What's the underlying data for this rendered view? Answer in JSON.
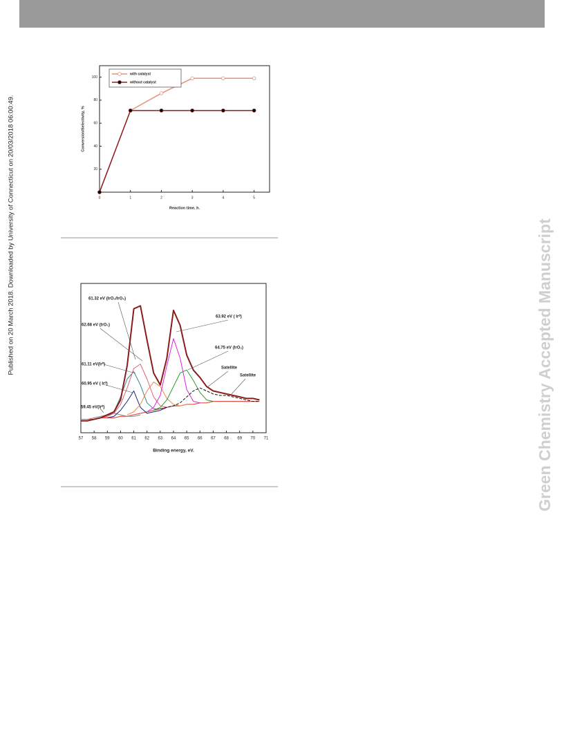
{
  "side_note": "Published on 20 March 2018. Downloaded by University of Connecticut on 20/03/2018 06:00:49.",
  "watermark": "Green Chemistry Accepted Manuscript",
  "chart_data": [
    {
      "type": "line",
      "xlabel": "Reaction time, h.",
      "ylabel": "Conversion/Selectivity, %",
      "x": [
        0,
        1,
        2,
        3,
        4,
        5
      ],
      "xlim": [
        0,
        5.5
      ],
      "xticks": [
        0,
        1,
        2,
        3,
        4,
        5
      ],
      "ylim": [
        0,
        110
      ],
      "yticks": [
        20,
        40,
        60,
        80,
        100
      ],
      "legend": "upper left",
      "series": [
        {
          "name": "with catalyst",
          "color": "#e8907a",
          "marker_color": "#ffffff",
          "linewidth": 1.5,
          "values": [
            0,
            71,
            86,
            99,
            99,
            99
          ]
        },
        {
          "name": "without catalyst",
          "color": "#8b2020",
          "marker_color": "#000000",
          "linewidth": 1.5,
          "values": [
            0,
            71,
            71,
            71,
            71,
            71
          ]
        }
      ]
    },
    {
      "type": "line",
      "xlabel": "Binding energy, eV.",
      "x": [
        57,
        57.5,
        58,
        58.5,
        59,
        59.5,
        60,
        60.5,
        61,
        61.5,
        62,
        62.5,
        63,
        63.5,
        64,
        64.5,
        65,
        65.5,
        66,
        66.5,
        67,
        67.5,
        68,
        68.5,
        69,
        69.5,
        70,
        70.5
      ],
      "xlim": [
        57,
        71
      ],
      "xticks": [
        57,
        58,
        59,
        60,
        61,
        62,
        63,
        64,
        65,
        66,
        67,
        68,
        69,
        70,
        71
      ],
      "ylim": [
        0,
        100
      ],
      "annotations": [
        "61.32 eV (IrO₂/IrO₃)",
        "62.68 eV (IrO₂)",
        "63.92 eV ( Ir⁰)",
        "64.75 eV (IrO₂)",
        "61.11 eV(Ir⁰)",
        "60.95 eV ( Ir⁰)",
        "59.45 eV(Ir⁰)",
        "Satellite",
        "Satellite"
      ],
      "series": [
        {
          "color": "#e05040",
          "linewidth": 1.2,
          "values": [
            9,
            9,
            9,
            10,
            10,
            10,
            11,
            11,
            12,
            13,
            14,
            15,
            16,
            17,
            18,
            18,
            19,
            19,
            20,
            20,
            21,
            21,
            21,
            21,
            21,
            21,
            21,
            21
          ]
        },
        {
          "color": "#888888",
          "linewidth": 1,
          "values": [
            9,
            9,
            10,
            11,
            12,
            13,
            12,
            11,
            11,
            12,
            null,
            null,
            null,
            null,
            null,
            null,
            null,
            null,
            null,
            null,
            null,
            null,
            null,
            null,
            null,
            null,
            null,
            null
          ]
        },
        {
          "color": "#1a237e",
          "linewidth": 1,
          "values": [
            null,
            null,
            null,
            null,
            10,
            11,
            15,
            21,
            28,
            17,
            13,
            14,
            15,
            17,
            null,
            null,
            null,
            null,
            null,
            null,
            null,
            null,
            null,
            null,
            null,
            null,
            null,
            null
          ]
        },
        {
          "color": "#2a8a8a",
          "linewidth": 1,
          "values": [
            null,
            null,
            null,
            10,
            11,
            14,
            24,
            36,
            41,
            32,
            20,
            16,
            16,
            null,
            null,
            null,
            null,
            null,
            null,
            null,
            null,
            null,
            null,
            null,
            null,
            null,
            null,
            null
          ]
        },
        {
          "color": "#e0607a",
          "linewidth": 1,
          "values": [
            null,
            null,
            null,
            10,
            11,
            13,
            19,
            30,
            43,
            46,
            36,
            24,
            18,
            17,
            null,
            null,
            null,
            null,
            null,
            null,
            null,
            null,
            null,
            null,
            null,
            null,
            null,
            null
          ]
        },
        {
          "color": "#e88850",
          "linewidth": 1,
          "values": [
            null,
            null,
            null,
            null,
            null,
            null,
            null,
            12,
            14,
            19,
            28,
            34,
            31,
            23,
            19,
            18,
            19,
            null,
            null,
            null,
            null,
            null,
            null,
            null,
            null,
            null,
            null,
            null
          ]
        },
        {
          "color": "#e020e0",
          "linewidth": 1,
          "values": [
            null,
            null,
            null,
            null,
            null,
            null,
            null,
            null,
            null,
            null,
            14,
            17,
            25,
            45,
            63,
            50,
            29,
            21,
            20,
            null,
            null,
            null,
            null,
            null,
            null,
            null,
            null,
            null
          ]
        },
        {
          "color": "#2a9a2a",
          "linewidth": 1,
          "values": [
            null,
            null,
            null,
            null,
            null,
            null,
            null,
            null,
            null,
            null,
            null,
            15,
            17,
            22,
            31,
            40,
            42,
            35,
            27,
            22,
            21,
            null,
            null,
            null,
            null,
            null,
            null,
            null
          ]
        },
        {
          "color": "#111111",
          "linewidth": 1,
          "linestyle": "dashed",
          "values": [
            null,
            null,
            null,
            null,
            null,
            null,
            null,
            null,
            null,
            null,
            null,
            null,
            16,
            17,
            18,
            20,
            24,
            28,
            30,
            28,
            26,
            25,
            25,
            24,
            23,
            22,
            21,
            21
          ]
        },
        {
          "color": "#8b1a1a",
          "linewidth": 2,
          "values": [
            8,
            8,
            9,
            10,
            12,
            14,
            22,
            45,
            83,
            85,
            62,
            40,
            32,
            50,
            82,
            72,
            52,
            42,
            37,
            31,
            28,
            27,
            26,
            25,
            24,
            23,
            23,
            22
          ]
        }
      ]
    }
  ]
}
